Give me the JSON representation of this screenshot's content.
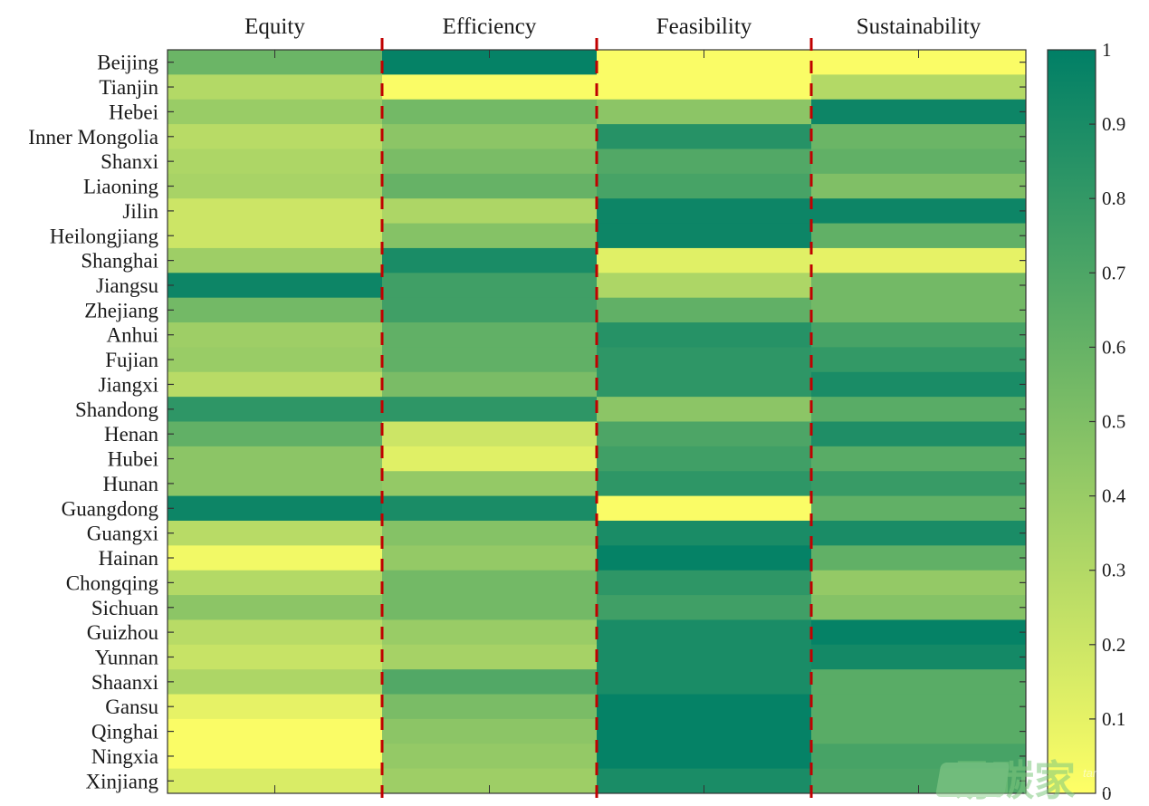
{
  "chart_data": {
    "type": "heatmap",
    "title": "",
    "xlabel": "",
    "ylabel": "",
    "columns": [
      "Equity",
      "Efficiency",
      "Feasibility",
      "Sustainability"
    ],
    "rows": [
      "Beijing",
      "Tianjin",
      "Hebei",
      "Inner Mongolia",
      "Shanxi",
      "Liaoning",
      "Jilin",
      "Heilongjiang",
      "Shanghai",
      "Jiangsu",
      "Zhejiang",
      "Anhui",
      "Fujian",
      "Jiangxi",
      "Shandong",
      "Henan",
      "Hubei",
      "Hunan",
      "Guangdong",
      "Guangxi",
      "Hainan",
      "Chongqing",
      "Sichuan",
      "Guizhou",
      "Yunnan",
      "Shaanxi",
      "Gansu",
      "Qinghai",
      "Ningxia",
      "Xinjiang"
    ],
    "values": [
      [
        0.58,
        0.98,
        0.02,
        0.02
      ],
      [
        0.3,
        0.02,
        0.02,
        0.3
      ],
      [
        0.4,
        0.55,
        0.45,
        0.95
      ],
      [
        0.28,
        0.45,
        0.85,
        0.58
      ],
      [
        0.32,
        0.52,
        0.68,
        0.62
      ],
      [
        0.34,
        0.6,
        0.72,
        0.5
      ],
      [
        0.2,
        0.32,
        0.95,
        0.95
      ],
      [
        0.2,
        0.48,
        0.95,
        0.62
      ],
      [
        0.38,
        0.9,
        0.12,
        0.1
      ],
      [
        0.95,
        0.75,
        0.32,
        0.55
      ],
      [
        0.55,
        0.75,
        0.62,
        0.55
      ],
      [
        0.38,
        0.62,
        0.85,
        0.72
      ],
      [
        0.4,
        0.62,
        0.82,
        0.8
      ],
      [
        0.28,
        0.52,
        0.82,
        0.9
      ],
      [
        0.82,
        0.82,
        0.45,
        0.65
      ],
      [
        0.62,
        0.2,
        0.7,
        0.88
      ],
      [
        0.45,
        0.12,
        0.75,
        0.65
      ],
      [
        0.45,
        0.42,
        0.82,
        0.78
      ],
      [
        0.95,
        0.9,
        0.02,
        0.62
      ],
      [
        0.28,
        0.48,
        0.9,
        0.9
      ],
      [
        0.05,
        0.42,
        0.98,
        0.62
      ],
      [
        0.3,
        0.55,
        0.82,
        0.42
      ],
      [
        0.45,
        0.55,
        0.75,
        0.48
      ],
      [
        0.28,
        0.4,
        0.9,
        0.98
      ],
      [
        0.22,
        0.35,
        0.9,
        0.92
      ],
      [
        0.32,
        0.68,
        0.9,
        0.65
      ],
      [
        0.1,
        0.52,
        0.98,
        0.65
      ],
      [
        0.02,
        0.45,
        0.98,
        0.65
      ],
      [
        0.02,
        0.42,
        0.98,
        0.72
      ],
      [
        0.15,
        0.38,
        0.9,
        0.7
      ]
    ],
    "colorbar": {
      "range": [
        0,
        1
      ],
      "ticks": [
        "0",
        "0.1",
        "0.2",
        "0.3",
        "0.4",
        "0.5",
        "0.6",
        "0.7",
        "0.8",
        "0.9",
        "1"
      ],
      "colormap": {
        "low": "#ffff66",
        "high": "#007f66"
      }
    },
    "separators": {
      "style": "dashed",
      "color": "#c00000",
      "between_columns": true
    },
    "grid": false,
    "legend": "right"
  },
  "watermark": {
    "text": "易碳家",
    "badge_line1": "tanjiaoyi",
    "badge_line2": ".com"
  }
}
